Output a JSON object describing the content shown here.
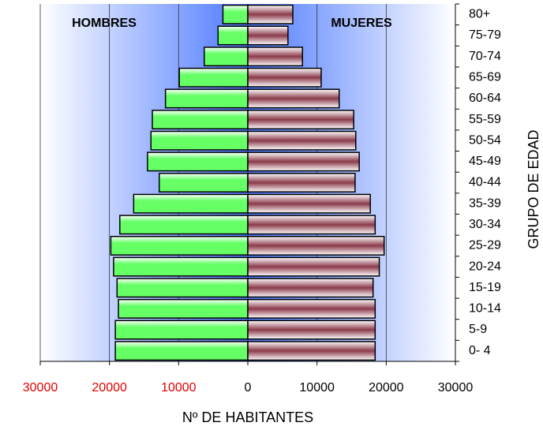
{
  "chart_data": {
    "type": "pyramid",
    "x_label": "Nº DE HABITANTES",
    "y_label": "GRUPO DE EDAD",
    "annotations": [
      "HOMBRES",
      "MUJERES"
    ],
    "categories": [
      "0- 4",
      "5-9",
      "10-14",
      "15-19",
      "20-24",
      "25-29",
      "30-34",
      "35-39",
      "40-44",
      "45-49",
      "50-54",
      "55-59",
      "60-64",
      "65-69",
      "70-74",
      "75-79",
      "80+"
    ],
    "series": [
      {
        "name": "HOMBRES",
        "color": "#66ff66",
        "values": [
          -19150,
          -19150,
          -18700,
          -18900,
          -19400,
          -19800,
          -18500,
          -16500,
          -12800,
          -14500,
          -14000,
          -13800,
          -11900,
          -9900,
          -6300,
          -4300,
          -3600
        ]
      },
      {
        "name": "MUJERES",
        "color": "#8b3a4a",
        "values": [
          18400,
          18400,
          18400,
          18100,
          19000,
          19700,
          18400,
          17700,
          15500,
          16100,
          15600,
          15300,
          13200,
          10600,
          7900,
          5800,
          6500
        ]
      }
    ],
    "xlim": [
      -30000,
      30000
    ],
    "xticks": [
      {
        "value": -30000,
        "label": "30000"
      },
      {
        "value": -20000,
        "label": "20000"
      },
      {
        "value": -10000,
        "label": "10000"
      },
      0,
      10000,
      20000,
      30000
    ],
    "grid": true
  }
}
